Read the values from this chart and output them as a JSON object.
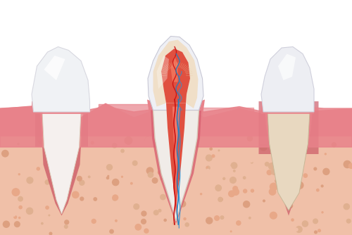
{
  "bg_color": "#ffffff",
  "gum_color": "#e8828a",
  "gum_dark": "#c95060",
  "bone_color": "#f0c0a8",
  "bone_texture": "#e8a888",
  "enamel_color": "#f0f0f5",
  "enamel_highlight": "#ffffff",
  "dentin_color": "#f5e8d0",
  "pulp_color": "#e05040",
  "pulp_inner": "#ff7060",
  "nerve_red": "#cc2020",
  "nerve_blue": "#4090c0",
  "cementum_color": "#c8d890",
  "periodontal_color": "#d86070",
  "root_outer": "#e0b8a0",
  "figsize": [
    5.0,
    3.34
  ],
  "dpi": 100
}
